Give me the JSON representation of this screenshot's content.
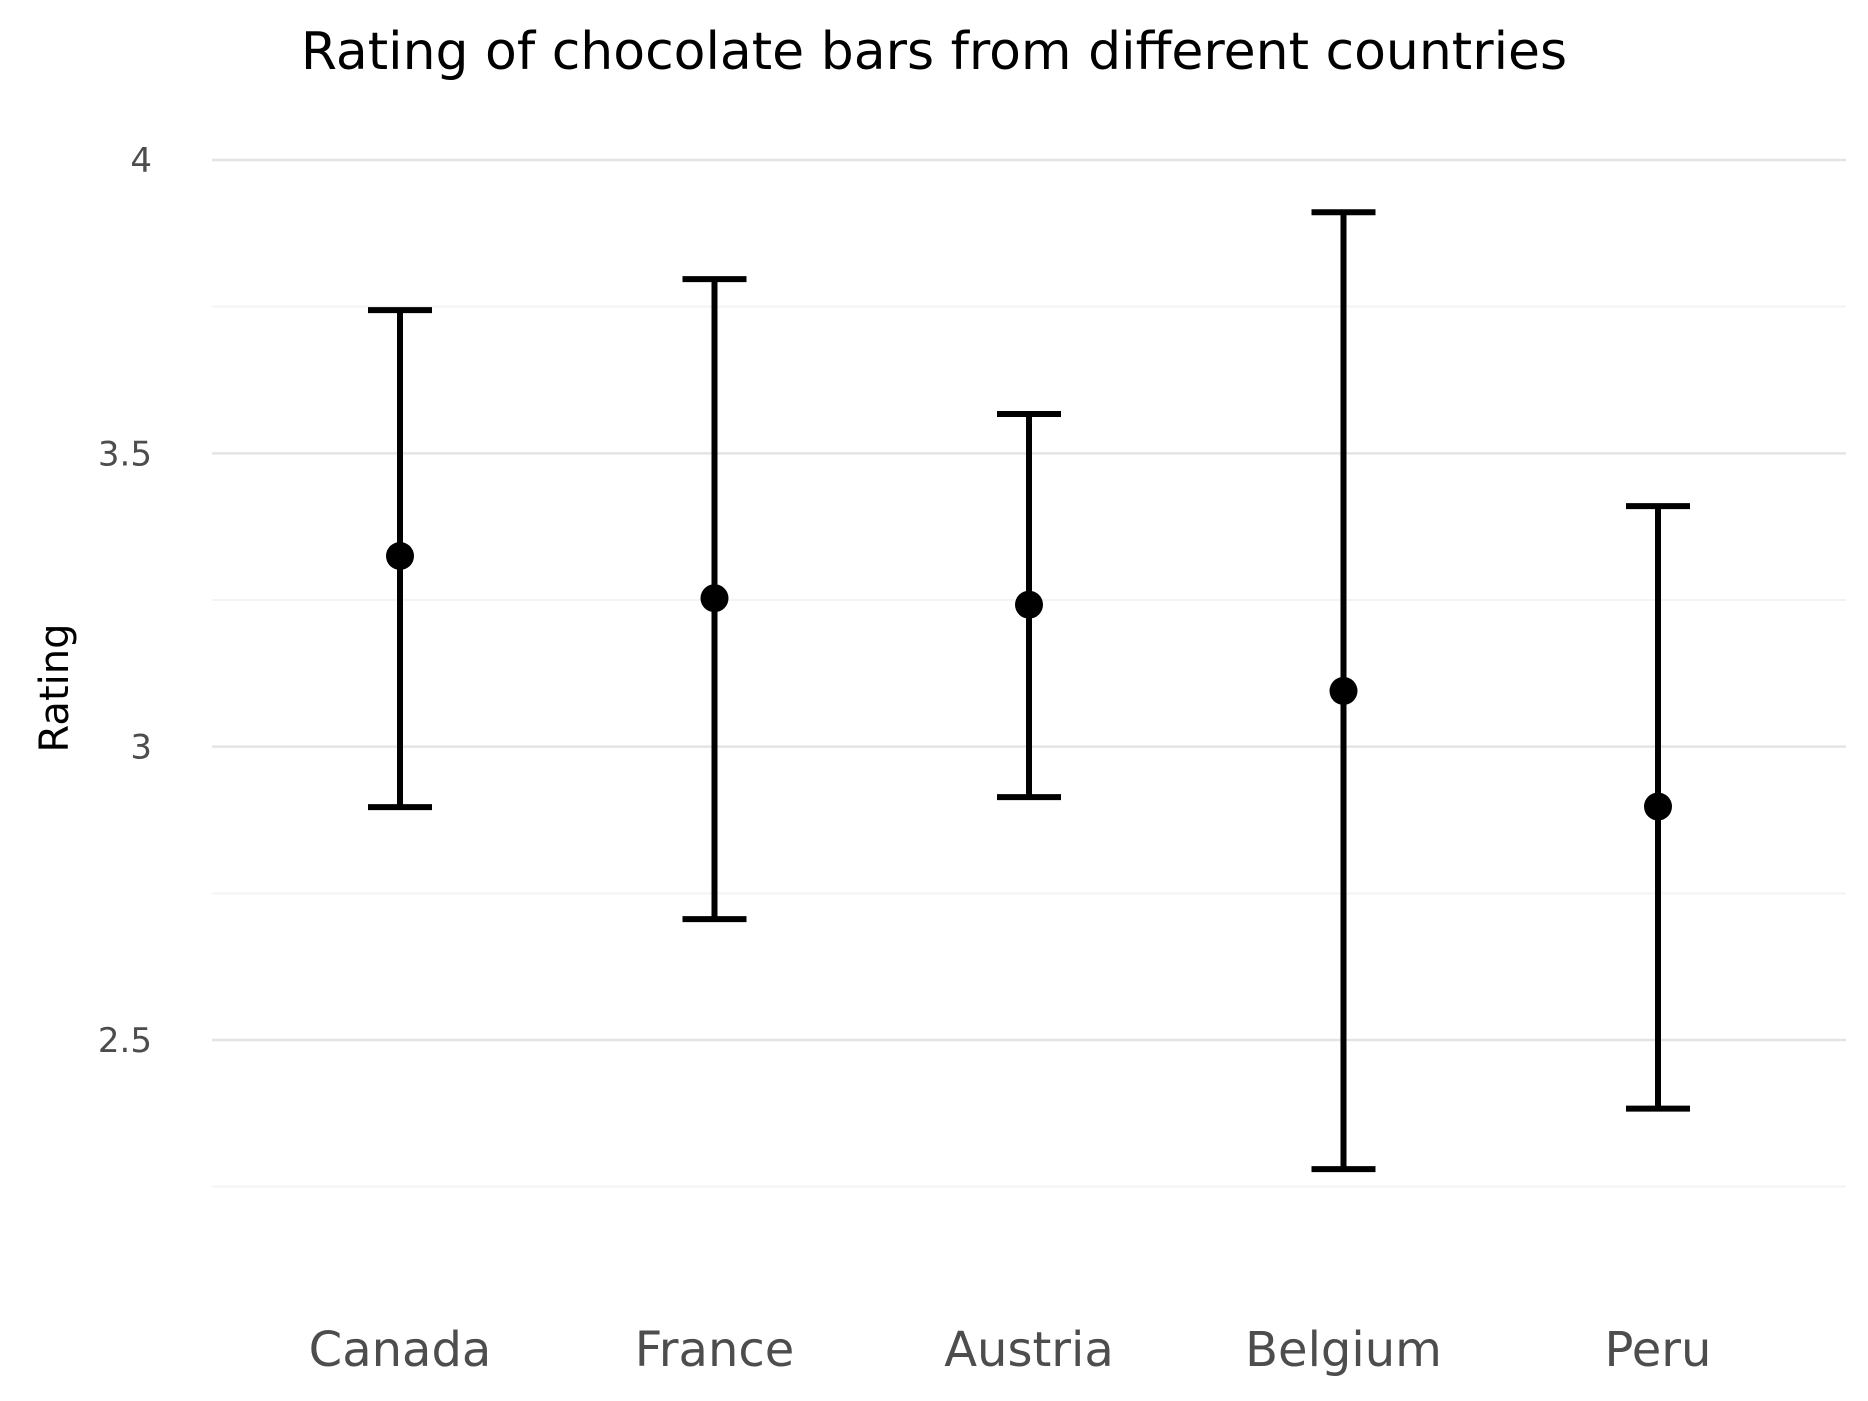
{
  "chart_data": {
    "type": "scatter",
    "title": "Rating of chocolate bars from different countries",
    "xlabel": "",
    "ylabel": "Rating",
    "categories": [
      "Canada",
      "France",
      "Austria",
      "Belgium",
      "Peru"
    ],
    "series": [
      {
        "values": [
          3.325,
          3.253,
          3.242,
          3.095,
          2.898
        ],
        "lower": [
          2.897,
          2.706,
          2.914,
          2.28,
          2.383
        ],
        "upper": [
          3.744,
          3.797,
          3.567,
          3.911,
          3.41
        ]
      }
    ],
    "yticks": [
      "2.5",
      "3",
      "3.5",
      "4"
    ],
    "ylim": [
      2.15,
      4.06
    ],
    "grid": true,
    "legend": "none"
  }
}
